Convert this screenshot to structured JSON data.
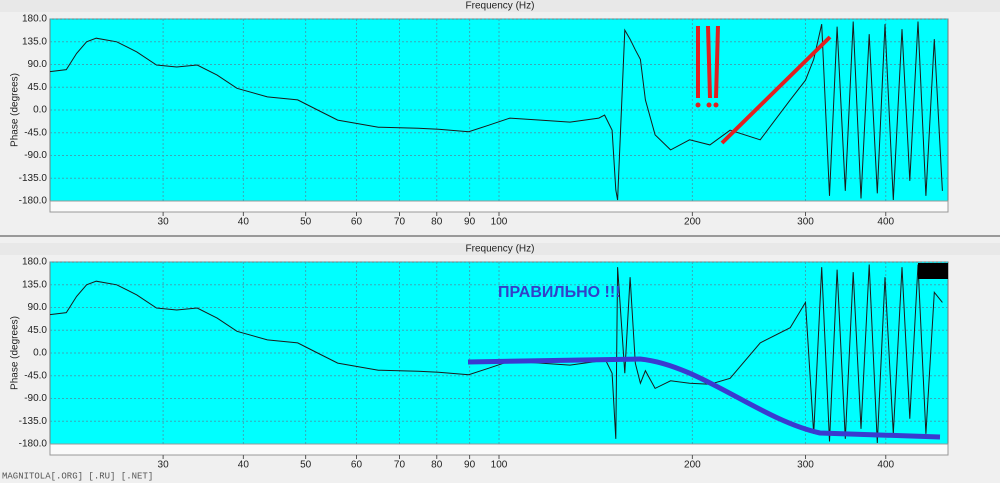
{
  "chart_data": [
    {
      "type": "line",
      "title": "Frequency (Hz)",
      "y_label": "Phase (degrees)",
      "log_x": true,
      "grid": true,
      "x": [
        20,
        21.2,
        22,
        22.8,
        23.6,
        25.4,
        27.3,
        29.3,
        31.5,
        33.9,
        36.4,
        39.1,
        43.6,
        48.6,
        52.2,
        56.1,
        64.9,
        74.9,
        80.5,
        89.7,
        96.4,
        104,
        116,
        129,
        143,
        146,
        150,
        152,
        153,
        157,
        160,
        163,
        166,
        169,
        175,
        185,
        198,
        213,
        229,
        255,
        284,
        300,
        309,
        318,
        327,
        336,
        346,
        356,
        366,
        377,
        388,
        399,
        411,
        424,
        436,
        449,
        462,
        476,
        490
      ],
      "series": [
        {
          "name": "Phase",
          "color": "#1a1a1a",
          "values": [
            76,
            80,
            112,
            135,
            142,
            135,
            115,
            89,
            85,
            89,
            69,
            43,
            26,
            20,
            0,
            -20,
            -34,
            -36,
            -38,
            -43,
            -30,
            -16,
            -20,
            -24,
            -16,
            -10,
            -40,
            -158,
            -178,
            158,
            140,
            119,
            100,
            20,
            -49,
            -79,
            -59,
            -69,
            -40,
            -59,
            20,
            59,
            100,
            170,
            -170,
            165,
            -160,
            175,
            -175,
            150,
            -165,
            170,
            -178,
            160,
            -140,
            175,
            -170,
            140,
            -160
          ]
        }
      ],
      "xlim": [
        20,
        500
      ],
      "xticks": [
        30,
        40,
        50,
        60,
        70,
        80,
        90,
        100,
        200,
        300,
        400
      ],
      "ylim": [
        -180,
        180
      ],
      "yticks": [
        {
          "value": -180,
          "label": "-180.0"
        },
        {
          "value": -135,
          "label": "-135.0"
        },
        {
          "value": -90,
          "label": "-90.0"
        },
        {
          "value": -45,
          "label": "-45.0"
        },
        {
          "value": 0,
          "label": "0.0"
        },
        {
          "value": 45,
          "label": "45.0"
        },
        {
          "value": 90,
          "label": "90.0"
        },
        {
          "value": 135,
          "label": "135.0"
        },
        {
          "value": 180,
          "label": "180.0"
        }
      ]
    },
    {
      "type": "line",
      "title": "Frequency (Hz)",
      "y_label": "Phase (degrees)",
      "log_x": true,
      "grid": true,
      "annotation": "ПРАВИЛЬНО !!!",
      "footer": "MAGNITOLA[.ORG] [.RU] [.NET]",
      "x": [
        20,
        21.2,
        22,
        22.8,
        23.6,
        25.4,
        27.3,
        29.3,
        31.5,
        33.9,
        36.4,
        39.1,
        43.6,
        48.6,
        52.2,
        56.1,
        64.9,
        74.9,
        80.5,
        89.7,
        96.4,
        104,
        116,
        129,
        143,
        146,
        150,
        152,
        153,
        157,
        160,
        163,
        166,
        169,
        175,
        185,
        198,
        213,
        229,
        255,
        284,
        300,
        309,
        318,
        327,
        336,
        346,
        356,
        366,
        377,
        388,
        399,
        411,
        424,
        436,
        449,
        462,
        476,
        490
      ],
      "series": [
        {
          "name": "Phase",
          "color": "#1a1a1a",
          "values": [
            76,
            80,
            112,
            135,
            142,
            135,
            115,
            89,
            85,
            89,
            69,
            43,
            26,
            20,
            0,
            -20,
            -34,
            -36,
            -38,
            -43,
            -30,
            -16,
            -20,
            -24,
            -16,
            -10,
            -40,
            -170,
            170,
            -40,
            150,
            -20,
            -60,
            -35,
            -70,
            -55,
            -60,
            -62,
            -50,
            20,
            50,
            100,
            -160,
            170,
            -175,
            165,
            -170,
            160,
            -150,
            175,
            -178,
            150,
            -160,
            170,
            -130,
            175,
            -160,
            120,
            100
          ]
        }
      ],
      "xlim": [
        20,
        500
      ],
      "xticks": [
        30,
        40,
        50,
        60,
        70,
        80,
        90,
        100,
        200,
        300,
        400
      ],
      "ylim": [
        -180,
        180
      ],
      "yticks": [
        {
          "value": -180,
          "label": "-180.0"
        },
        {
          "value": -135,
          "label": "-135.0"
        },
        {
          "value": -90,
          "label": "-90.0"
        },
        {
          "value": -45,
          "label": "-45.0"
        },
        {
          "value": 0,
          "label": "0.0"
        },
        {
          "value": 45,
          "label": "45.0"
        },
        {
          "value": 90,
          "label": "90.0"
        },
        {
          "value": 135,
          "label": "135.0"
        },
        {
          "value": 180,
          "label": "180.0"
        }
      ]
    }
  ]
}
